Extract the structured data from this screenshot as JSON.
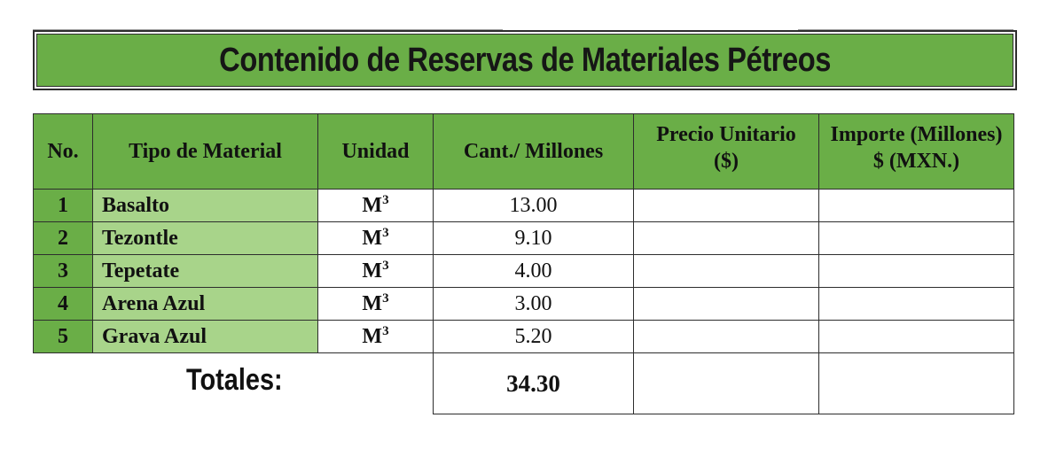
{
  "title": "Contenido de Reservas de Materiales Pétreos",
  "headers": {
    "no": "No.",
    "tipo": "Tipo de Material",
    "unidad": "Unidad",
    "cantidad": "Cant./ Millones",
    "precio_line1": "Precio Unitario",
    "precio_line2": "($)",
    "importe_line1": "Importe (Millones)",
    "importe_line2": "$ (MXN.)"
  },
  "rows": [
    {
      "no": "1",
      "material": "Basalto",
      "unit_base": "M",
      "unit_exp": "3",
      "qty": "13.00",
      "precio": "",
      "importe": ""
    },
    {
      "no": "2",
      "material": "Tezontle",
      "unit_base": "M",
      "unit_exp": "3",
      "qty": "9.10",
      "precio": "",
      "importe": ""
    },
    {
      "no": "3",
      "material": "Tepetate",
      "unit_base": "M",
      "unit_exp": "3",
      "qty": "4.00",
      "precio": "",
      "importe": ""
    },
    {
      "no": "4",
      "material": "Arena Azul",
      "unit_base": "M",
      "unit_exp": "3",
      "qty": "3.00",
      "precio": "",
      "importe": ""
    },
    {
      "no": "5",
      "material": "Grava Azul",
      "unit_base": "M",
      "unit_exp": "3",
      "qty": "5.20",
      "precio": "",
      "importe": ""
    }
  ],
  "totals": {
    "label": "Totales:",
    "qty": "34.30",
    "precio": "",
    "importe": ""
  },
  "colors": {
    "header_green": "#6aae47",
    "material_light_green": "#a8d48a",
    "border": "#2d2d2d"
  }
}
